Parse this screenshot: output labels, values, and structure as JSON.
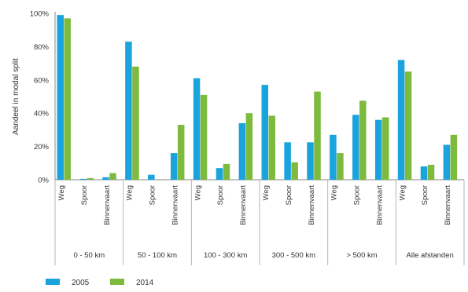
{
  "chart_data": {
    "type": "bar",
    "ylabel": "Aandeel in modal split",
    "ylim": [
      0,
      100
    ],
    "yticks": [
      "0%",
      "20%",
      "40%",
      "60%",
      "80%",
      "100%"
    ],
    "grid": false,
    "legend_position": "bottom-left",
    "groups": [
      {
        "label": "0 - 50 km",
        "categories": [
          "Weg",
          "Spoor",
          "Binnenvaart"
        ]
      },
      {
        "label": "50 - 100 km",
        "categories": [
          "Weg",
          "Spoor",
          "Binnenvaart"
        ]
      },
      {
        "label": "100 - 300 km",
        "categories": [
          "Weg",
          "Spoor",
          "Binnenvaart"
        ]
      },
      {
        "label": "300 - 500 km",
        "categories": [
          "Weg",
          "Spoor",
          "Binnenvaart"
        ]
      },
      {
        "label": "> 500 km",
        "categories": [
          "Weg",
          "Spoor",
          "Binnenvaart"
        ]
      },
      {
        "label": "Alle afstanden",
        "categories": [
          "Weg",
          "Spoor",
          "Binnenvaart"
        ]
      }
    ],
    "series": [
      {
        "name": "2005",
        "color": "#1ba3dd",
        "values": [
          99,
          0.5,
          1.5,
          83,
          3,
          16,
          61,
          7,
          34,
          57,
          22.5,
          22.5,
          27,
          39,
          36,
          72,
          8,
          21
        ]
      },
      {
        "name": "2014",
        "color": "#7dba3e",
        "values": [
          97,
          1,
          4,
          68,
          0,
          33,
          51,
          9.5,
          40,
          38.5,
          10.5,
          53,
          16,
          47.5,
          37.5,
          65,
          9,
          27
        ]
      }
    ]
  }
}
